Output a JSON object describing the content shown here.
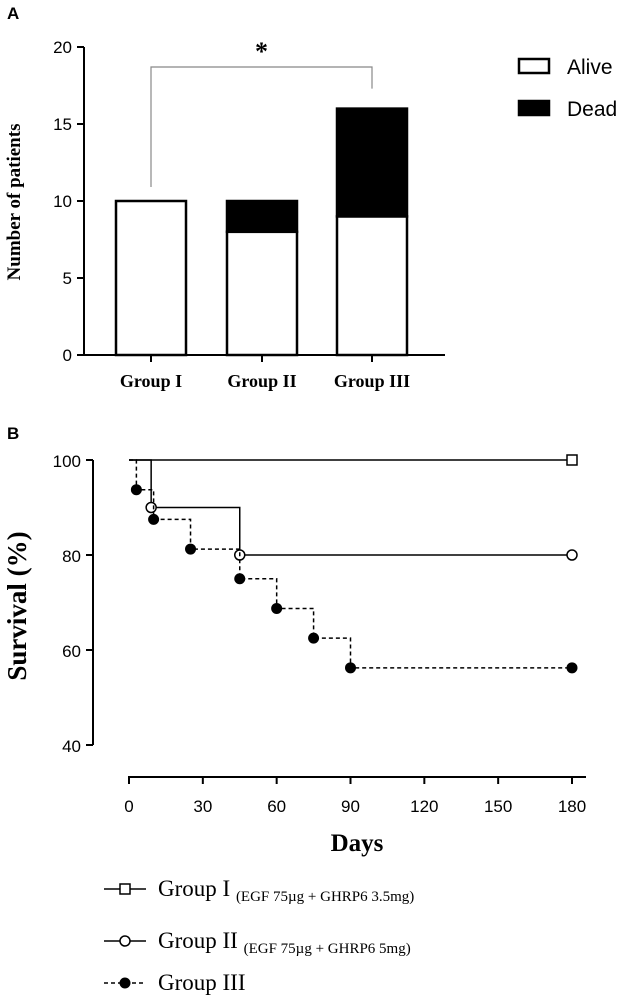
{
  "chart_data": [
    {
      "panel": "A",
      "type": "bar",
      "stacked": true,
      "categories": [
        "Group I",
        "Group II",
        "Group III"
      ],
      "series": [
        {
          "name": "Alive",
          "values": [
            10,
            8,
            9
          ],
          "color": "#ffffff"
        },
        {
          "name": "Dead",
          "values": [
            0,
            2,
            7
          ],
          "color": "#000000"
        }
      ],
      "ylabel": "Number of patients",
      "ylim": [
        0,
        20
      ],
      "yticks": [
        0,
        5,
        10,
        15,
        20
      ],
      "significance": {
        "label": "*",
        "from": "Group I",
        "to": "Group III"
      },
      "legend_position": "top-right",
      "grid": false
    },
    {
      "panel": "B",
      "type": "line",
      "subtype": "kaplan-meier",
      "xlabel": "Days",
      "ylabel": "Survival (%)",
      "xlim": [
        0,
        180
      ],
      "ylim": [
        40,
        100
      ],
      "xticks": [
        0,
        30,
        60,
        90,
        120,
        150,
        180
      ],
      "yticks": [
        40,
        60,
        80,
        100
      ],
      "legend_position": "bottom",
      "grid": false,
      "series": [
        {
          "name": "Group I",
          "detail": "(EGF 75µg + GHRP6 3.5mg)",
          "marker": "open-square",
          "line": "solid",
          "steps": [
            [
              0,
              100
            ],
            [
              180,
              100
            ]
          ],
          "markers": [
            [
              180,
              100
            ]
          ]
        },
        {
          "name": "Group II",
          "detail": "(EGF 75µg + GHRP6 5mg)",
          "marker": "open-circle",
          "line": "solid",
          "steps": [
            [
              0,
              100
            ],
            [
              9,
              90
            ],
            [
              45,
              80
            ],
            [
              180,
              80
            ]
          ],
          "markers": [
            [
              9,
              90
            ],
            [
              45,
              80
            ],
            [
              180,
              80
            ]
          ]
        },
        {
          "name": "Group III",
          "detail": "",
          "marker": "filled-circle",
          "line": "dashed",
          "steps": [
            [
              0,
              100
            ],
            [
              3,
              93.75
            ],
            [
              10,
              87.5
            ],
            [
              25,
              81.25
            ],
            [
              45,
              75
            ],
            [
              60,
              68.75
            ],
            [
              75,
              62.5
            ],
            [
              90,
              56.25
            ],
            [
              180,
              56.25
            ]
          ],
          "markers": [
            [
              3,
              93.75
            ],
            [
              10,
              87.5
            ],
            [
              25,
              81.25
            ],
            [
              45,
              75
            ],
            [
              60,
              68.75
            ],
            [
              75,
              62.5
            ],
            [
              90,
              56.25
            ],
            [
              180,
              56.25
            ]
          ]
        }
      ]
    }
  ]
}
